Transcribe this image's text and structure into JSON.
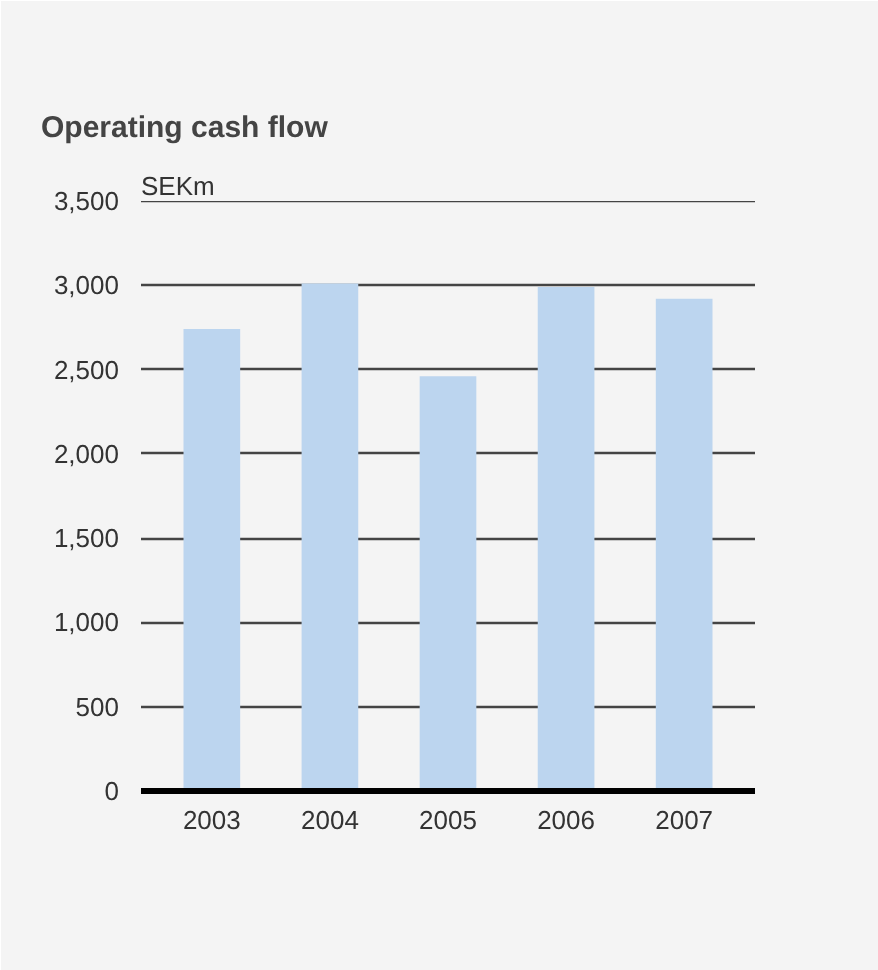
{
  "chart_data": {
    "type": "bar",
    "title": "Operating cash flow",
    "ylabel": "SEKm",
    "categories": [
      "2003",
      "2004",
      "2005",
      "2006",
      "2007"
    ],
    "values": [
      2740,
      3010,
      2460,
      2990,
      2920
    ],
    "color": "#bcd5ef",
    "ylim": [
      0,
      3500
    ],
    "yticks": [
      {
        "value": 0,
        "label": "0"
      },
      {
        "value": 500,
        "label": "500"
      },
      {
        "value": 1000,
        "label": "1,000"
      },
      {
        "value": 1500,
        "label": "1,500"
      },
      {
        "value": 2000,
        "label": "2,000"
      },
      {
        "value": 2500,
        "label": "2,500"
      },
      {
        "value": 3000,
        "label": "3,000"
      },
      {
        "value": 3500,
        "label": "3,500"
      }
    ],
    "grid": "y"
  }
}
